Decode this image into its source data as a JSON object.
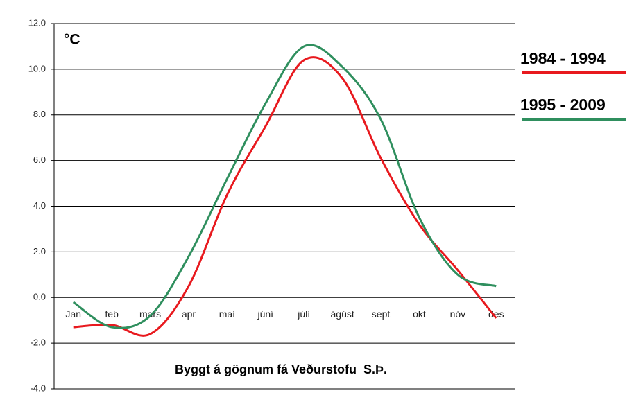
{
  "chart_data": {
    "type": "line",
    "y_unit": "°C",
    "annotation": "Byggt á gögnum fá Veðurstofu  S.Þ.",
    "categories": [
      "Jan",
      "feb",
      "mars",
      "apr",
      "maí",
      "júní",
      "júlí",
      "ágúst",
      "sept",
      "okt",
      "nóv",
      "des"
    ],
    "series": [
      {
        "name": "1984 - 1994",
        "color": "#e8191e",
        "values": [
          -1.3,
          -1.2,
          -1.6,
          0.5,
          4.5,
          7.5,
          10.4,
          9.6,
          6.1,
          3.2,
          1.2,
          -0.9
        ]
      },
      {
        "name": "1995 - 2009",
        "color": "#2f8f5e",
        "values": [
          -0.2,
          -1.3,
          -0.8,
          1.8,
          5.2,
          8.5,
          11.0,
          10.1,
          7.8,
          3.5,
          1.0,
          0.5
        ]
      }
    ],
    "ylim": [
      -4,
      12
    ],
    "yticks": [
      {
        "value": -4,
        "label": "-4.0"
      },
      {
        "value": -2,
        "label": "-2.0"
      },
      {
        "value": 0,
        "label": "0.0"
      },
      {
        "value": 2,
        "label": "2.0"
      },
      {
        "value": 4,
        "label": "4.0"
      },
      {
        "value": 6,
        "label": "6.0"
      },
      {
        "value": 8,
        "label": "8.0"
      },
      {
        "value": 10,
        "label": "10.0"
      },
      {
        "value": 12,
        "label": "12.0"
      }
    ],
    "grid": true
  }
}
